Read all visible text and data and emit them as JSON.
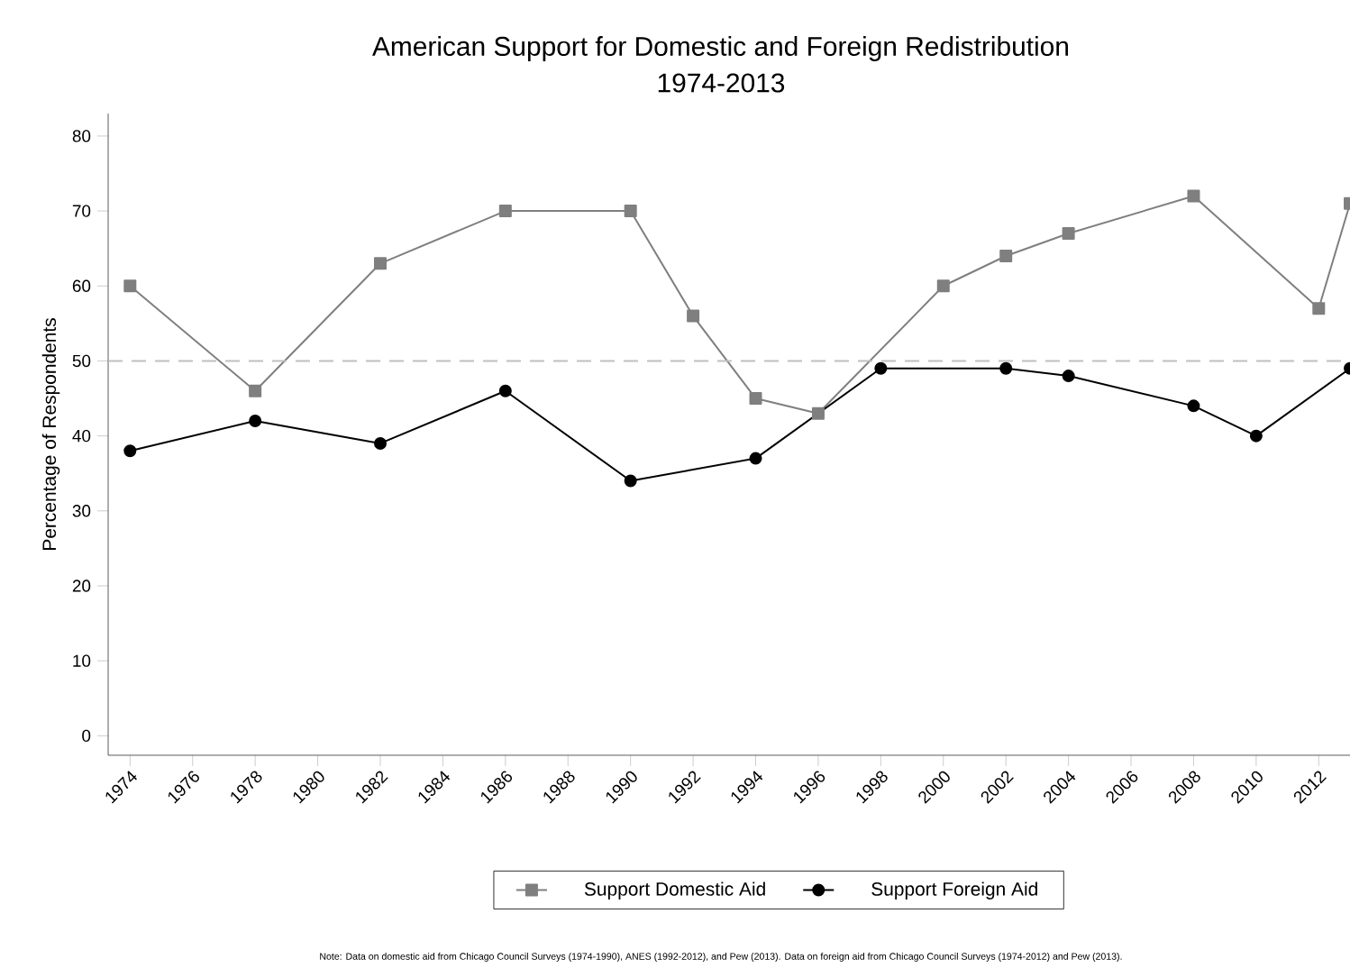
{
  "chart_data": {
    "type": "line",
    "title": "American Support for Domestic and Foreign Redistribution",
    "subtitle": "1974-2013",
    "ylabel": "Percentage of Respondents",
    "annotations": [
      "Note: Data on domestic aid from Chicago Council Surveys (1974-1990), ANES (1992-2012), and Pew (2013). Data on foreign aid from Chicago Council Surveys (1974-2012) and Pew (2013)."
    ],
    "series": [
      {
        "name": "Support Domestic Aid",
        "color": "#7f7f7f",
        "marker": "square",
        "x": [
          1974,
          1978,
          1982,
          1986,
          1990,
          1992,
          1994,
          1996,
          2000,
          2002,
          2004,
          2008,
          2012,
          2013
        ],
        "values": [
          60,
          46,
          63,
          70,
          70,
          56,
          45,
          43,
          60,
          64,
          67,
          72,
          57,
          71
        ]
      },
      {
        "name": "Support Foreign Aid",
        "color": "#000000",
        "marker": "circle",
        "x": [
          1974,
          1978,
          1982,
          1986,
          1990,
          1994,
          1998,
          2002,
          2004,
          2008,
          2010,
          2013
        ],
        "values": [
          38,
          42,
          39,
          46,
          34,
          37,
          49,
          49,
          48,
          44,
          40,
          49
        ]
      }
    ],
    "xlim": [
      1973.3,
      2013
    ],
    "ylim": [
      -2.6,
      83
    ],
    "xticks": [
      1974,
      1976,
      1978,
      1980,
      1982,
      1984,
      1986,
      1988,
      1990,
      1992,
      1994,
      1996,
      1998,
      2000,
      2002,
      2004,
      2006,
      2008,
      2010,
      2012
    ],
    "yticks": [
      0,
      10,
      20,
      30,
      40,
      50,
      60,
      70,
      80
    ],
    "ref_lines": [
      {
        "axis": "y",
        "value": 50,
        "color": "#bfbfbf",
        "line_style": "dashed"
      }
    ],
    "grid": false,
    "legend": "bottom",
    "line_style": "solid"
  }
}
